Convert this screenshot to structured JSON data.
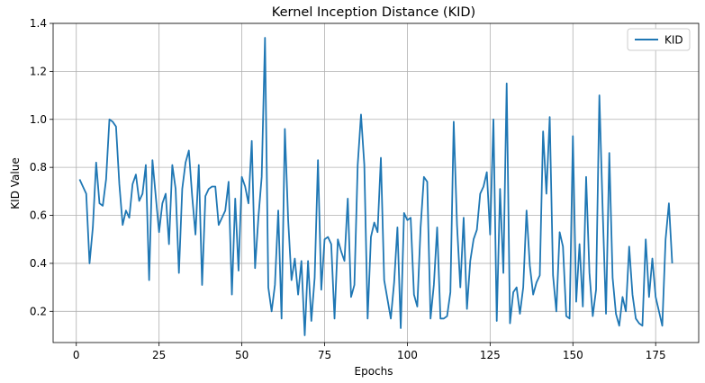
{
  "chart_data": {
    "type": "line",
    "title": "Kernel Inception Distance (KID)",
    "xlabel": "Epochs",
    "ylabel": "KID Value",
    "xlim": [
      -7,
      188
    ],
    "ylim": [
      0.07,
      1.4
    ],
    "xticks": [
      0,
      25,
      50,
      75,
      100,
      125,
      150,
      175
    ],
    "yticks": [
      0.2,
      0.4,
      0.6,
      0.8,
      1.0,
      1.2,
      1.4
    ],
    "ytick_labels": [
      "0.2",
      "0.4",
      "0.6",
      "0.8",
      "1.0",
      "1.2",
      "1.4"
    ],
    "grid": true,
    "legend": "upper-right",
    "colors": {
      "line": "#1f77b4",
      "grid": "#b0b0b0"
    },
    "series": [
      {
        "name": "KID",
        "x": [
          1,
          2,
          3,
          4,
          5,
          6,
          7,
          8,
          9,
          10,
          11,
          12,
          13,
          14,
          15,
          16,
          17,
          18,
          19,
          20,
          21,
          22,
          23,
          24,
          25,
          26,
          27,
          28,
          29,
          30,
          31,
          32,
          33,
          34,
          35,
          36,
          37,
          38,
          39,
          40,
          41,
          42,
          43,
          44,
          45,
          46,
          47,
          48,
          49,
          50,
          51,
          52,
          53,
          54,
          55,
          56,
          57,
          58,
          59,
          60,
          61,
          62,
          63,
          64,
          65,
          66,
          67,
          68,
          69,
          70,
          71,
          72,
          73,
          74,
          75,
          76,
          77,
          78,
          79,
          80,
          81,
          82,
          83,
          84,
          85,
          86,
          87,
          88,
          89,
          90,
          91,
          92,
          93,
          94,
          95,
          96,
          97,
          98,
          99,
          100,
          101,
          102,
          103,
          104,
          105,
          106,
          107,
          108,
          109,
          110,
          111,
          112,
          113,
          114,
          115,
          116,
          117,
          118,
          119,
          120,
          121,
          122,
          123,
          124,
          125,
          126,
          127,
          128,
          129,
          130,
          131,
          132,
          133,
          134,
          135,
          136,
          137,
          138,
          139,
          140,
          141,
          142,
          143,
          144,
          145,
          146,
          147,
          148,
          149,
          150,
          151,
          152,
          153,
          154,
          155,
          156,
          157,
          158,
          159,
          160,
          161,
          162,
          163,
          164,
          165,
          166,
          167,
          168,
          169,
          170,
          171,
          172,
          173,
          174,
          175,
          176,
          177,
          178,
          179,
          180
        ],
        "values": [
          0.75,
          0.72,
          0.69,
          0.4,
          0.55,
          0.82,
          0.65,
          0.64,
          0.75,
          1.0,
          0.99,
          0.97,
          0.73,
          0.56,
          0.62,
          0.59,
          0.73,
          0.77,
          0.66,
          0.69,
          0.81,
          0.33,
          0.83,
          0.68,
          0.53,
          0.65,
          0.69,
          0.48,
          0.81,
          0.71,
          0.36,
          0.71,
          0.82,
          0.87,
          0.68,
          0.52,
          0.81,
          0.31,
          0.68,
          0.71,
          0.72,
          0.72,
          0.56,
          0.59,
          0.62,
          0.74,
          0.27,
          0.67,
          0.37,
          0.76,
          0.72,
          0.65,
          0.91,
          0.38,
          0.59,
          0.76,
          1.34,
          0.3,
          0.2,
          0.31,
          0.62,
          0.17,
          0.96,
          0.58,
          0.33,
          0.42,
          0.27,
          0.41,
          0.1,
          0.41,
          0.16,
          0.34,
          0.83,
          0.29,
          0.5,
          0.51,
          0.48,
          0.17,
          0.5,
          0.45,
          0.41,
          0.67,
          0.26,
          0.31,
          0.81,
          1.02,
          0.81,
          0.17,
          0.51,
          0.57,
          0.53,
          0.84,
          0.33,
          0.25,
          0.17,
          0.32,
          0.55,
          0.13,
          0.61,
          0.58,
          0.59,
          0.27,
          0.22,
          0.55,
          0.76,
          0.74,
          0.17,
          0.31,
          0.55,
          0.17,
          0.17,
          0.18,
          0.28,
          0.99,
          0.56,
          0.3,
          0.59,
          0.21,
          0.41,
          0.5,
          0.54,
          0.69,
          0.72,
          0.78,
          0.52,
          1.0,
          0.16,
          0.71,
          0.36,
          1.15,
          0.15,
          0.28,
          0.3,
          0.19,
          0.3,
          0.62,
          0.39,
          0.27,
          0.32,
          0.35,
          0.95,
          0.69,
          1.01,
          0.35,
          0.2,
          0.53,
          0.47,
          0.18,
          0.17,
          0.93,
          0.24,
          0.48,
          0.22,
          0.76,
          0.36,
          0.18,
          0.29,
          1.1,
          0.62,
          0.19,
          0.86,
          0.34,
          0.19,
          0.14,
          0.26,
          0.2,
          0.47,
          0.27,
          0.17,
          0.15,
          0.14,
          0.5,
          0.26,
          0.42,
          0.26,
          0.2,
          0.14,
          0.5,
          0.65,
          0.4
        ]
      }
    ]
  }
}
